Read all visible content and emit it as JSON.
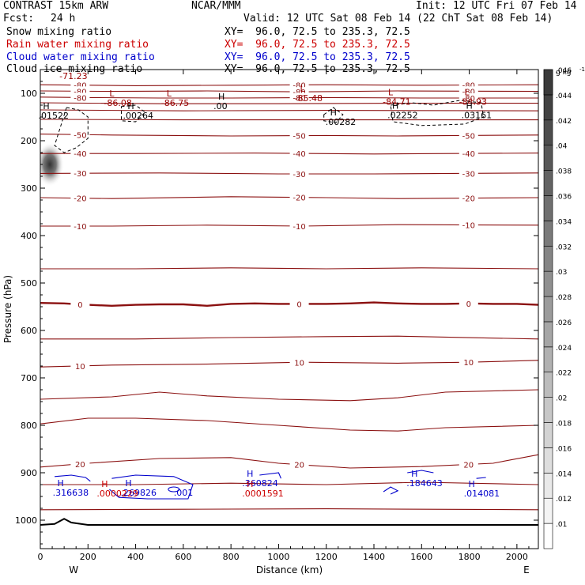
{
  "header": {
    "model": "CONTRAST 15km ARW",
    "org": "NCAR/MMM",
    "init": "Init: 12 UTC Fri 07 Feb 14",
    "fcst_label": "Fcst:",
    "fcst_value": "24 h",
    "valid": "Valid: 12 UTC Sat 08 Feb 14 (22 ChT Sat 08 Feb 14)",
    "fields": [
      {
        "name": "Snow mixing ratio",
        "xy": "XY=  96.0, 72.5 to 235.3, 72.5",
        "color": "#000000"
      },
      {
        "name": "Rain water mixing ratio",
        "xy": "XY=  96.0, 72.5 to 235.3, 72.5",
        "color": "#cc0000"
      },
      {
        "name": "Cloud water mixing ratio",
        "xy": "XY=  96.0, 72.5 to 235.3, 72.5",
        "color": "#0000cc"
      },
      {
        "name": "Cloud ice mixing ratio",
        "xy": "XY=  96.0, 72.5 to 235.3, 72.5",
        "color": "#000000"
      }
    ]
  },
  "chart_data": {
    "type": "cross-section contour",
    "xlabel": "Distance (km)",
    "ylabel": "Pressure (hPa)",
    "x_end_labels": {
      "left": "W",
      "right": "E"
    },
    "xlim": [
      0,
      2090
    ],
    "ylim": [
      1060,
      50
    ],
    "x_ticks": [
      0,
      200,
      400,
      600,
      800,
      1000,
      1200,
      1400,
      1600,
      1800,
      2000
    ],
    "y_ticks": [
      100,
      200,
      300,
      400,
      500,
      600,
      700,
      800,
      900,
      1000
    ],
    "colorbar": {
      "unit": "g kg",
      "unit_exp": "-1",
      "ticks": [
        ".01",
        ".012",
        ".014",
        ".016",
        ".018",
        ".02",
        ".022",
        ".024",
        ".026",
        ".028",
        ".03",
        ".032",
        ".034",
        ".036",
        ".038",
        ".04",
        ".042",
        ".044",
        ".046"
      ]
    },
    "temperature_lines": [
      {
        "label": "-80",
        "points": [
          [
            0,
            82
          ],
          [
            400,
            84
          ],
          [
            800,
            83
          ],
          [
            1200,
            82
          ],
          [
            1600,
            83
          ],
          [
            2090,
            82
          ]
        ]
      },
      {
        "label": "-80",
        "points": [
          [
            0,
            95
          ],
          [
            300,
            96
          ],
          [
            700,
            95
          ],
          [
            1100,
            97
          ],
          [
            1500,
            95
          ],
          [
            2090,
            96
          ]
        ]
      },
      {
        "label": "-80",
        "points": [
          [
            0,
            108
          ],
          [
            200,
            109
          ],
          [
            500,
            110
          ],
          [
            800,
            110
          ],
          [
            1200,
            109
          ],
          [
            1600,
            110
          ],
          [
            2090,
            110
          ]
        ]
      },
      {
        "label": "",
        "points": [
          [
            0,
            120
          ],
          [
            500,
            122
          ],
          [
            1000,
            122
          ],
          [
            1500,
            121
          ],
          [
            2090,
            121
          ]
        ]
      },
      {
        "label": "",
        "points": [
          [
            0,
            135
          ],
          [
            600,
            137
          ],
          [
            1200,
            136
          ],
          [
            2090,
            137
          ]
        ]
      },
      {
        "label": "",
        "points": [
          [
            0,
            155
          ],
          [
            600,
            156
          ],
          [
            1200,
            156
          ],
          [
            2090,
            156
          ]
        ]
      },
      {
        "label": "-50",
        "points": [
          [
            0,
            186
          ],
          [
            300,
            188
          ],
          [
            800,
            190
          ],
          [
            1200,
            189
          ],
          [
            1500,
            190
          ],
          [
            2090,
            188
          ]
        ]
      },
      {
        "label": "-40",
        "points": [
          [
            0,
            227
          ],
          [
            400,
            227
          ],
          [
            900,
            226
          ],
          [
            1400,
            228
          ],
          [
            2090,
            226
          ]
        ]
      },
      {
        "label": "-30",
        "points": [
          [
            0,
            269
          ],
          [
            500,
            268
          ],
          [
            1000,
            270
          ],
          [
            1400,
            270
          ],
          [
            2090,
            268
          ]
        ]
      },
      {
        "label": "-20",
        "points": [
          [
            0,
            320
          ],
          [
            300,
            322
          ],
          [
            800,
            318
          ],
          [
            1200,
            320
          ],
          [
            1500,
            322
          ],
          [
            2090,
            320
          ]
        ]
      },
      {
        "label": "-10",
        "points": [
          [
            0,
            380
          ],
          [
            300,
            380
          ],
          [
            700,
            378
          ],
          [
            1100,
            380
          ],
          [
            1500,
            377
          ],
          [
            2090,
            378
          ]
        ]
      },
      {
        "label": "",
        "points": [
          [
            0,
            470
          ],
          [
            400,
            470
          ],
          [
            800,
            468
          ],
          [
            1200,
            470
          ],
          [
            1600,
            468
          ],
          [
            2090,
            470
          ]
        ]
      },
      {
        "label": "0",
        "points": [
          [
            0,
            542
          ],
          [
            100,
            543
          ],
          [
            200,
            546
          ],
          [
            300,
            548
          ],
          [
            400,
            546
          ],
          [
            500,
            545
          ],
          [
            600,
            545
          ],
          [
            700,
            548
          ],
          [
            800,
            544
          ],
          [
            900,
            543
          ],
          [
            1000,
            544
          ],
          [
            1100,
            544
          ],
          [
            1200,
            544
          ],
          [
            1300,
            543
          ],
          [
            1400,
            541
          ],
          [
            1500,
            543
          ],
          [
            1600,
            544
          ],
          [
            1700,
            544
          ],
          [
            1800,
            543
          ],
          [
            1900,
            544
          ],
          [
            2000,
            544
          ],
          [
            2090,
            546
          ]
        ]
      },
      {
        "label": "",
        "points": [
          [
            0,
            618
          ],
          [
            400,
            618
          ],
          [
            800,
            615
          ],
          [
            1200,
            613
          ],
          [
            1500,
            612
          ],
          [
            2090,
            618
          ]
        ]
      },
      {
        "label": "10",
        "points": [
          [
            0,
            677
          ],
          [
            300,
            673
          ],
          [
            700,
            671
          ],
          [
            1100,
            667
          ],
          [
            1500,
            669
          ],
          [
            1800,
            667
          ],
          [
            2090,
            663
          ]
        ]
      },
      {
        "label": "",
        "points": [
          [
            0,
            745
          ],
          [
            300,
            740
          ],
          [
            500,
            730
          ],
          [
            700,
            738
          ],
          [
            1000,
            745
          ],
          [
            1300,
            748
          ],
          [
            1500,
            742
          ],
          [
            1700,
            730
          ],
          [
            2090,
            725
          ]
        ]
      },
      {
        "label": "",
        "points": [
          [
            0,
            797
          ],
          [
            200,
            785
          ],
          [
            400,
            785
          ],
          [
            700,
            790
          ],
          [
            1000,
            800
          ],
          [
            1300,
            810
          ],
          [
            1500,
            812
          ],
          [
            1700,
            805
          ],
          [
            2090,
            800
          ]
        ]
      },
      {
        "label": "20",
        "points": [
          [
            0,
            888
          ],
          [
            200,
            880
          ],
          [
            500,
            870
          ],
          [
            800,
            868
          ],
          [
            1000,
            880
          ],
          [
            1300,
            890
          ],
          [
            1600,
            887
          ],
          [
            1900,
            880
          ],
          [
            2090,
            862
          ]
        ]
      },
      {
        "label": "",
        "points": [
          [
            0,
            925
          ],
          [
            400,
            925
          ],
          [
            800,
            922
          ],
          [
            1200,
            925
          ],
          [
            1600,
            920
          ],
          [
            2090,
            925
          ]
        ]
      },
      {
        "label": "",
        "points": [
          [
            0,
            978
          ],
          [
            600,
            977
          ],
          [
            1200,
            976
          ],
          [
            2090,
            978
          ]
        ]
      }
    ],
    "zero_line_value": 0,
    "ground": [
      [
        0,
        1010
      ],
      [
        60,
        1008
      ],
      [
        100,
        997
      ],
      [
        130,
        1005
      ],
      [
        200,
        1010
      ],
      [
        2090,
        1010
      ]
    ],
    "highs_lows": [
      {
        "type": "L",
        "x": 300,
        "p": 113,
        "value": "-86.08",
        "color": "#990000"
      },
      {
        "type": "L",
        "x": 540,
        "p": 113,
        "value": "-86.75",
        "color": "#990000"
      },
      {
        "type": "L",
        "x": 1100,
        "p": 103,
        "value": "-85.48",
        "color": "#990000"
      },
      {
        "type": "L",
        "x": 1470,
        "p": 111,
        "value": "-84.71",
        "color": "#990000"
      },
      {
        "type": "L",
        "x": 1790,
        "p": 111,
        "value": "-84.93",
        "color": "#990000"
      },
      {
        "type": "H",
        "x": 25,
        "p": 140,
        "value": ".01522",
        "color": "#000000"
      },
      {
        "type": "H",
        "x": 380,
        "p": 140,
        "value": ".00264",
        "color": "#000000"
      },
      {
        "type": "H",
        "x": 760,
        "p": 120,
        "value": ".00",
        "color": "#000000"
      },
      {
        "type": "H",
        "x": 1230,
        "p": 153,
        "value": ".00282",
        "color": "#000000"
      },
      {
        "type": "H",
        "x": 1490,
        "p": 139,
        "value": ".02252",
        "color": "#000000"
      },
      {
        "type": "H",
        "x": 1800,
        "p": 139,
        "value": ".03161",
        "color": "#000000"
      },
      {
        "type": "H",
        "x": 85,
        "p": 935,
        "value": ".316638",
        "color": "#0000cc"
      },
      {
        "type": "H",
        "x": 370,
        "p": 935,
        "value": ".269826",
        "color": "#0000cc"
      },
      {
        "type": "H",
        "x": 880,
        "p": 915,
        "value": ".360824",
        "color": "#0000cc"
      },
      {
        "type": "H",
        "x": 1570,
        "p": 915,
        "value": ".184643",
        "color": "#0000cc"
      },
      {
        "type": "H",
        "x": 1810,
        "p": 937,
        "value": ".014081",
        "color": "#0000cc"
      },
      {
        "type": "H",
        "x": 270,
        "p": 937,
        "value": ".0000229",
        "color": "#cc0000"
      },
      {
        "type": "H",
        "x": 880,
        "p": 937,
        "value": ".0001591",
        "color": "#cc0000"
      }
    ],
    "extra_labels": [
      {
        "text": "-71.23",
        "x": 80,
        "p": 70,
        "color": "#990000"
      },
      {
        "text": ".001",
        "x": 560,
        "p": 948,
        "color": "#0000cc"
      }
    ],
    "snow_blob": {
      "x": 40,
      "p": 250
    }
  }
}
